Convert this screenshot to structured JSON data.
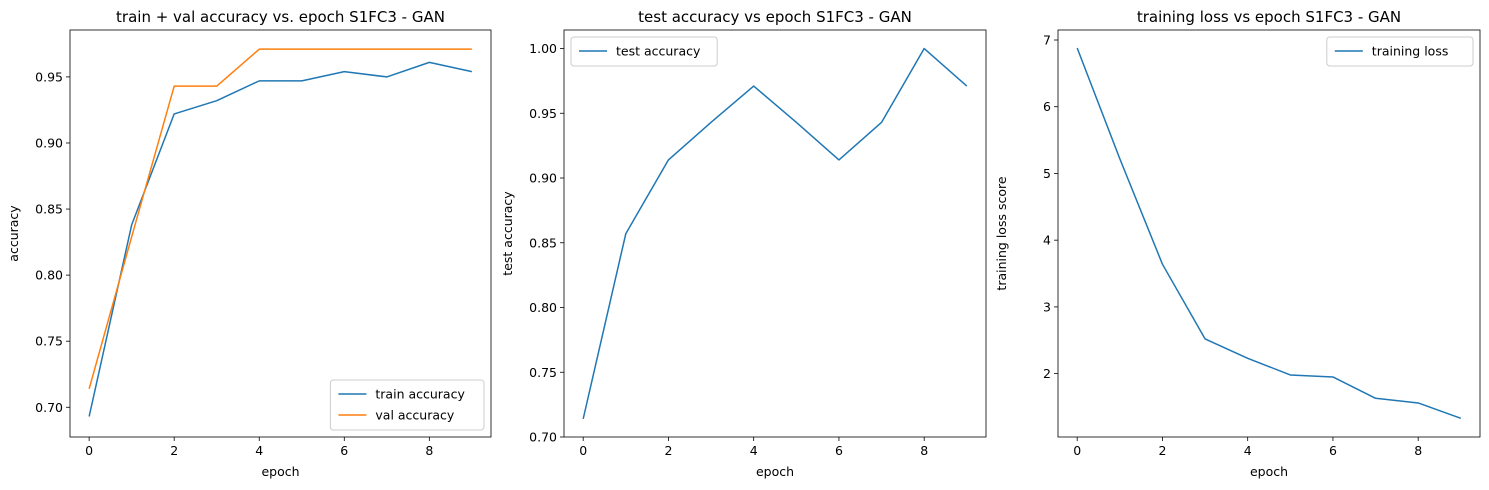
{
  "chart_data": [
    {
      "type": "line",
      "title": "train + val accuracy vs. epoch S1FC3 - GAN",
      "xlabel": "epoch",
      "ylabel": "accuracy",
      "xlim": [
        -0.45,
        9.45
      ],
      "ylim": [
        0.6775,
        0.9855
      ],
      "xticks": [
        0,
        2,
        4,
        6,
        8
      ],
      "yticks": [
        0.7,
        0.75,
        0.8,
        0.85,
        0.9,
        0.95
      ],
      "legend_position": "lower-right",
      "x": [
        0,
        1,
        2,
        3,
        4,
        5,
        6,
        7,
        8,
        9
      ],
      "series": [
        {
          "name": "train accuracy",
          "color": "#1f77b4",
          "values": [
            0.693,
            0.838,
            0.922,
            0.932,
            0.947,
            0.947,
            0.954,
            0.95,
            0.961,
            0.954
          ]
        },
        {
          "name": "val accuracy",
          "color": "#ff7f0e",
          "values": [
            0.714,
            0.829,
            0.943,
            0.943,
            0.971,
            0.971,
            0.971,
            0.971,
            0.971,
            0.971
          ]
        }
      ]
    },
    {
      "type": "line",
      "title": "test accuracy vs epoch S1FC3 - GAN",
      "xlabel": "epoch",
      "ylabel": "test accuracy",
      "xlim": [
        -0.45,
        9.45
      ],
      "ylim": [
        0.7,
        1.0143
      ],
      "xticks": [
        0,
        2,
        4,
        6,
        8
      ],
      "yticks": [
        0.7,
        0.75,
        0.8,
        0.85,
        0.9,
        0.95,
        1.0
      ],
      "legend_position": "upper-left",
      "x": [
        0,
        1,
        2,
        3,
        4,
        5,
        6,
        7,
        8,
        9
      ],
      "series": [
        {
          "name": "test accuracy",
          "color": "#1f77b4",
          "values": [
            0.714,
            0.857,
            0.914,
            0.943,
            0.971,
            0.943,
            0.914,
            0.943,
            1.0,
            0.971
          ]
        }
      ]
    },
    {
      "type": "line",
      "title": "training loss vs epoch S1FC3 - GAN",
      "xlabel": "epoch",
      "ylabel": "training loss score",
      "xlim": [
        -0.45,
        9.45
      ],
      "ylim": [
        1.05,
        7.15
      ],
      "xticks": [
        0,
        2,
        4,
        6,
        8
      ],
      "yticks": [
        2,
        3,
        4,
        5,
        6,
        7
      ],
      "legend_position": "upper-right",
      "x": [
        0,
        1,
        2,
        3,
        4,
        5,
        6,
        7,
        8,
        9
      ],
      "series": [
        {
          "name": "training loss",
          "color": "#1f77b4",
          "values": [
            6.88,
            5.22,
            3.64,
            2.52,
            2.23,
            1.98,
            1.95,
            1.63,
            1.56,
            1.33
          ]
        }
      ]
    }
  ]
}
